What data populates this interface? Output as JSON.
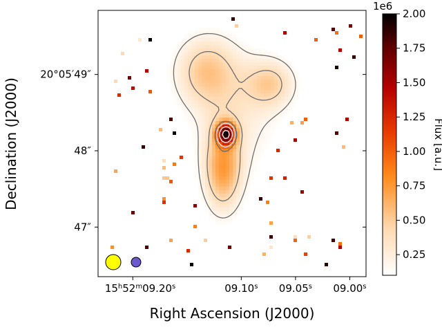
{
  "chart_data": {
    "type": "heatmap",
    "title": "",
    "xlabel": "Right Ascension (J2000)",
    "ylabel": "Declination (J2000)",
    "x_ticks": [
      {
        "ra_s": 9.2,
        "label_main": "15",
        "label_h": "h",
        "label_mid": "52",
        "label_m": "m",
        "label_sec": "09.20",
        "label_s": "s"
      },
      {
        "ra_s": 9.1,
        "label_main": "",
        "label_h": "",
        "label_mid": "",
        "label_m": "",
        "label_sec": "09.10",
        "label_s": "s"
      },
      {
        "ra_s": 9.05,
        "label_main": "",
        "label_h": "",
        "label_mid": "",
        "label_m": "",
        "label_sec": "09.05",
        "label_s": "s"
      },
      {
        "ra_s": 9.0,
        "label_main": "",
        "label_h": "",
        "label_mid": "",
        "label_m": "",
        "label_sec": "09.00",
        "label_s": "s"
      }
    ],
    "y_ticks": [
      {
        "dec_arcsec": 49,
        "label": "20°05′49″"
      },
      {
        "dec_arcsec": 48,
        "label": "48″"
      },
      {
        "dec_arcsec": 47,
        "label": "47″"
      }
    ],
    "xlim_ra_s": [
      9.232,
      8.985
    ],
    "ylim_dec_arcsec": [
      46.35,
      49.84
    ],
    "colorbar": {
      "label": "Flux [a.u.]",
      "exponent": "1e6",
      "vmin": 0.1,
      "vmax": 2.0,
      "ticks": [
        0.25,
        0.5,
        0.75,
        1.0,
        1.25,
        1.5,
        1.75,
        2.0
      ],
      "tick_labels": [
        "0.25",
        "0.50",
        "0.75",
        "1.00",
        "1.25",
        "1.50",
        "1.75",
        "2.00"
      ],
      "colormap": "gist_heat_r"
    },
    "emission": {
      "peak_ra_s": 9.114,
      "peak_dec_arcsec": 48.22,
      "peak_flux_1e6": 2.0,
      "components": [
        {
          "name": "compact core",
          "ra_s": 9.114,
          "dec_arcsec": 48.22,
          "flux_1e6": 1.5
        },
        {
          "name": "southern extension",
          "ra_s": 9.117,
          "dec_arcsec": 47.75,
          "flux_1e6": 0.65
        },
        {
          "name": "north-west lobe",
          "ra_s": 9.133,
          "dec_arcsec": 49.05,
          "flux_1e6": 0.45
        },
        {
          "name": "north-east lobe",
          "ra_s": 9.073,
          "dec_arcsec": 48.88,
          "flux_1e6": 0.4
        }
      ]
    },
    "contours": {
      "dark_levels_1e6": [
        0.18,
        0.4,
        0.8
      ],
      "light_levels_1e6": [
        1.0,
        1.4,
        1.8
      ]
    },
    "beams": [
      {
        "name": "beam-1",
        "ra_s": 9.218,
        "dec_arcsec": 46.54,
        "color": "#ffff00"
      },
      {
        "name": "beam-2",
        "ra_s": 9.197,
        "dec_arcsec": 46.54,
        "color": "#6a5acd"
      }
    ]
  },
  "colors": {
    "contour_dark": "#6e6e6e",
    "contour_light": "#dcdcdc",
    "frame": "#000000"
  }
}
